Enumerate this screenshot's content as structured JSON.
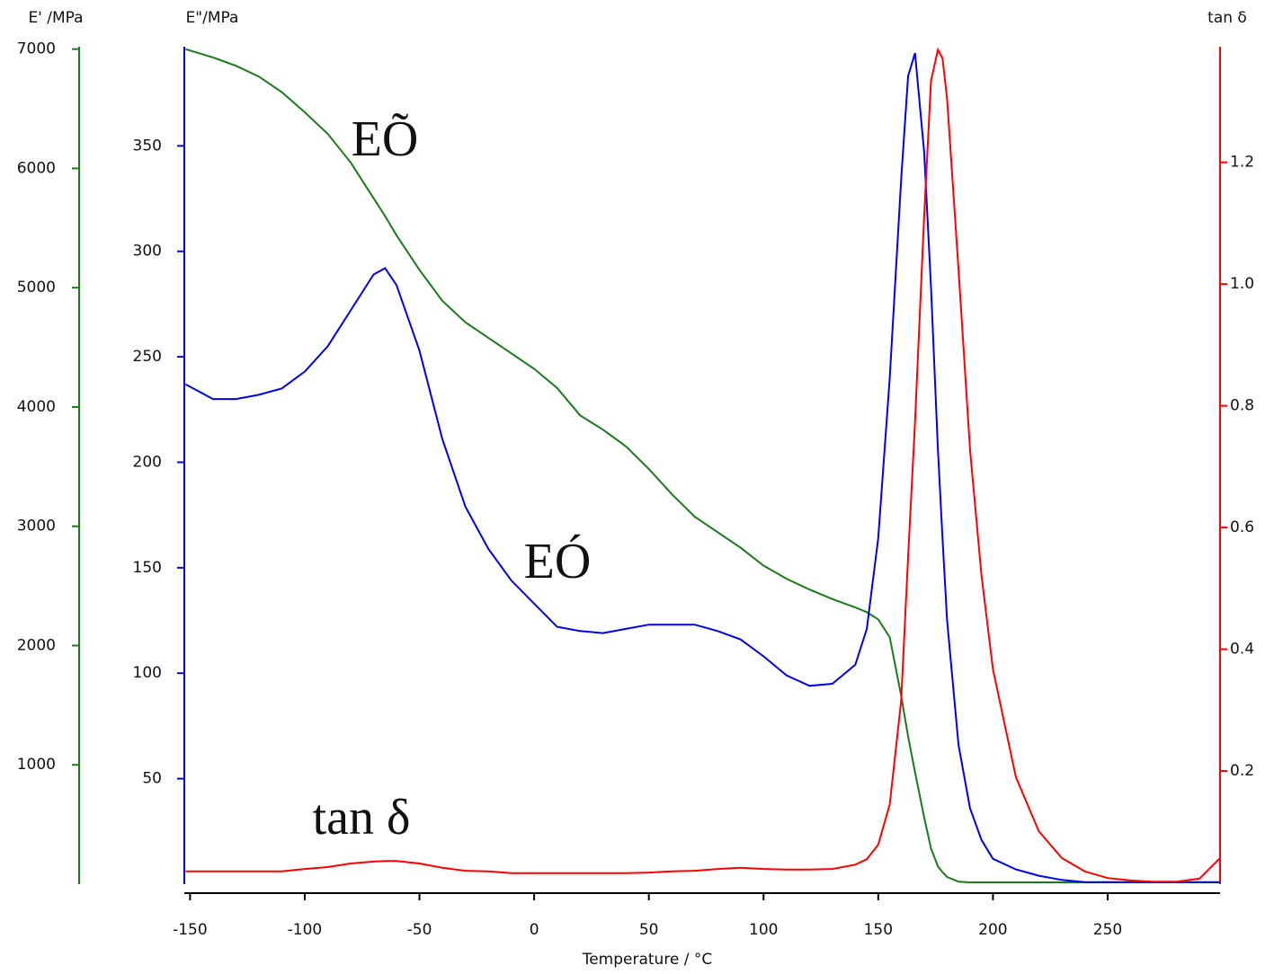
{
  "chart_data": {
    "type": "line",
    "xlabel": "Temperature / °C",
    "ylabel": "E' /MPa",
    "y2label": "E\"/MPa",
    "y3label": "tan δ",
    "annotations": [
      "EÕ",
      "EÓ",
      "tan δ"
    ],
    "x": [
      -152,
      -140,
      -130,
      -120,
      -110,
      -100,
      -90,
      -80,
      -70,
      -65,
      -60,
      -50,
      -40,
      -30,
      -20,
      -10,
      0,
      10,
      20,
      30,
      40,
      50,
      60,
      70,
      80,
      90,
      100,
      110,
      120,
      130,
      140,
      145,
      150,
      155,
      160,
      163,
      166,
      170,
      173,
      176,
      178,
      180,
      185,
      190,
      195,
      200,
      210,
      220,
      230,
      240,
      250,
      260,
      270,
      280,
      290,
      299
    ],
    "xlim": [
      -152.5,
      299
    ],
    "xticks": [
      -150,
      -100,
      -50,
      0,
      50,
      100,
      150,
      200,
      250
    ],
    "ylim": [
      0,
      7020
    ],
    "yticks": [
      1000,
      2000,
      3000,
      4000,
      5000,
      6000,
      7000
    ],
    "y2lim": [
      0,
      397
    ],
    "y2ticks": [
      50,
      100,
      150,
      200,
      250,
      300,
      350
    ],
    "y3lim": [
      0.014,
      1.39
    ],
    "y3ticks": [
      0.2,
      0.4,
      0.6,
      0.8,
      {
        "value": 1,
        "label": "1.0"
      },
      1.2
    ],
    "series": [
      {
        "color": "#1a7a1a",
        "axis": "y",
        "values": [
          7000,
          6930,
          6860,
          6770,
          6640,
          6470,
          6290,
          6050,
          5750,
          5600,
          5440,
          5150,
          4890,
          4710,
          4580,
          4450,
          4320,
          4160,
          3930,
          3810,
          3670,
          3480,
          3270,
          3080,
          2950,
          2820,
          2670,
          2560,
          2470,
          2390,
          2320,
          2280,
          2220,
          2070,
          1580,
          1240,
          940,
          560,
          300,
          150,
          100,
          60,
          20,
          15,
          15,
          15,
          15,
          15,
          15,
          15,
          15,
          15,
          15,
          15,
          15,
          15
        ]
      },
      {
        "color": "#0000ee",
        "axis": "y2",
        "values": [
          237,
          230,
          230,
          232,
          235,
          243,
          255,
          272,
          289,
          292,
          284,
          253,
          211,
          179,
          159,
          144,
          133,
          122,
          120,
          119,
          121,
          123,
          123,
          123,
          120,
          116,
          108,
          99,
          94,
          95,
          104,
          121,
          164,
          240,
          334,
          383,
          394,
          347,
          283,
          206,
          164,
          125,
          66,
          36,
          21,
          12,
          7,
          4,
          2,
          1,
          1,
          1,
          1,
          1,
          1,
          1
        ]
      },
      {
        "color": "#ff0000",
        "axis": "y3",
        "values": [
          0.035,
          0.035,
          0.035,
          0.035,
          0.035,
          0.039,
          0.042,
          0.048,
          0.051,
          0.052,
          0.052,
          0.048,
          0.041,
          0.036,
          0.035,
          0.032,
          0.032,
          0.032,
          0.032,
          0.032,
          0.032,
          0.033,
          0.035,
          0.036,
          0.039,
          0.041,
          0.039,
          0.038,
          0.038,
          0.039,
          0.046,
          0.055,
          0.079,
          0.145,
          0.315,
          0.551,
          0.773,
          1.112,
          1.334,
          1.385,
          1.371,
          1.304,
          1.024,
          0.728,
          0.522,
          0.367,
          0.19,
          0.101,
          0.057,
          0.035,
          0.024,
          0.02,
          0.018,
          0.018,
          0.023,
          0.057
        ]
      }
    ]
  }
}
